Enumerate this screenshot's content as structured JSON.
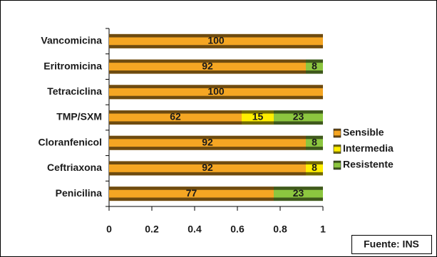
{
  "chart_data": {
    "type": "bar",
    "orientation": "horizontal",
    "stacked": true,
    "categories": [
      "Vancomicina",
      "Eritromicina",
      "Tetraciclina",
      "TMP/SXM",
      "Cloranfenicol",
      "Ceftriaxona",
      "Penicilina"
    ],
    "series": [
      {
        "name": "Sensible",
        "color": "#f5a623",
        "values": [
          1.0,
          0.92,
          1.0,
          0.62,
          0.92,
          0.92,
          0.77
        ],
        "value_labels": [
          "100",
          "92",
          "100",
          "62",
          "92",
          "92",
          "77"
        ]
      },
      {
        "name": "Intermedia",
        "color": "#ffee00",
        "values": [
          0,
          0,
          0,
          0.15,
          0,
          0.08,
          0
        ],
        "value_labels": [
          null,
          null,
          null,
          "15",
          null,
          "8",
          null
        ]
      },
      {
        "name": "Resistente",
        "color": "#8cc63f",
        "values": [
          0,
          0.08,
          0,
          0.23,
          0.08,
          0,
          0.23
        ],
        "value_labels": [
          null,
          "8",
          null,
          "23",
          "8",
          null,
          "23"
        ]
      }
    ],
    "xlim": [
      0,
      1
    ],
    "xticks": [
      0,
      0.2,
      0.4,
      0.6,
      0.8,
      1
    ],
    "legend": "right",
    "grid": false,
    "source": "Fuente: INS"
  }
}
